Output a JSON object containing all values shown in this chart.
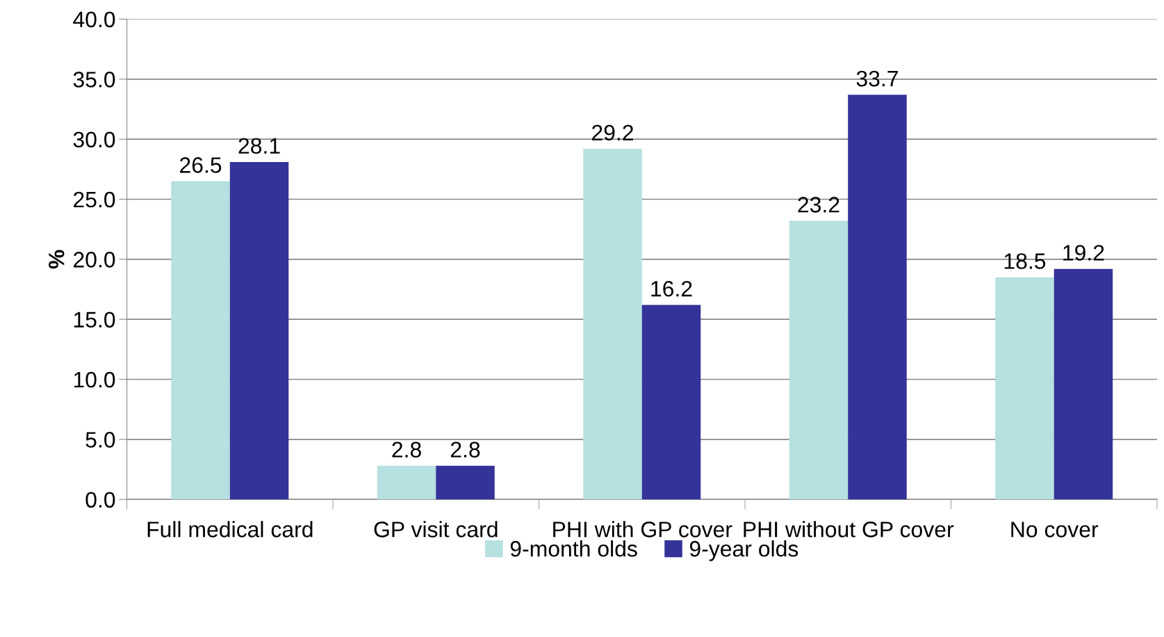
{
  "chart_data": {
    "type": "bar",
    "ylabel": "%",
    "categories": [
      "Full medical card",
      "GP visit card",
      "PHI with GP cover",
      "PHI without GP cover",
      "No cover"
    ],
    "series": [
      {
        "name": "9-month olds",
        "color": "#b7e0e0",
        "values": [
          26.5,
          2.8,
          29.2,
          23.2,
          18.5
        ]
      },
      {
        "name": "9-year olds",
        "color": "#333399",
        "values": [
          28.1,
          2.8,
          16.2,
          33.7,
          19.2
        ]
      }
    ],
    "ylim": [
      0,
      40
    ],
    "yticks": [
      {
        "value": 0,
        "label": "0.0"
      },
      {
        "value": 5,
        "label": "5.0"
      },
      {
        "value": 10,
        "label": "10.0"
      },
      {
        "value": 15,
        "label": "15.0"
      },
      {
        "value": 20,
        "label": "20.0"
      },
      {
        "value": 25,
        "label": "25.0"
      },
      {
        "value": 30,
        "label": "30.0"
      },
      {
        "value": 35,
        "label": "35.0"
      },
      {
        "value": 40,
        "label": "40.0"
      }
    ],
    "grid": "y",
    "legend": "bottom",
    "data_labels": true
  }
}
